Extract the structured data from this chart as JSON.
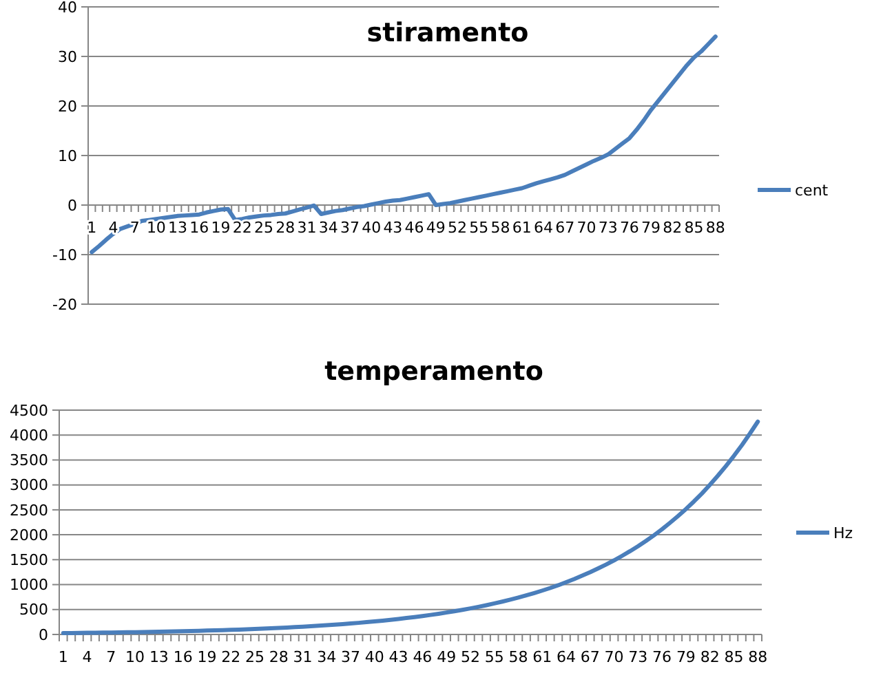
{
  "chart_data": [
    {
      "type": "line",
      "title": "stiramento",
      "categories": [
        "1",
        null,
        null,
        "4",
        null,
        null,
        "7",
        null,
        null,
        "10",
        null,
        null,
        "13",
        null,
        null,
        "16",
        null,
        null,
        "19",
        null,
        null,
        "22",
        null,
        null,
        "25",
        null,
        null,
        "28",
        null,
        null,
        "31",
        null,
        null,
        "34",
        null,
        null,
        "37",
        null,
        null,
        "40",
        null,
        null,
        "43",
        null,
        null,
        "46",
        null,
        null,
        "49",
        null,
        null,
        "52",
        null,
        null,
        "55",
        null,
        null,
        "58",
        null,
        null,
        "61",
        null,
        null,
        "64",
        null,
        null,
        "67",
        null,
        null,
        "70",
        null,
        null,
        "73",
        null,
        null,
        "76",
        null,
        null,
        "79",
        null,
        null,
        "82",
        null,
        null,
        "85",
        null,
        null,
        "88"
      ],
      "series": [
        {
          "name": "cent",
          "color": "#4a7ebb",
          "values": [
            -9.5,
            -8.3,
            -7,
            -5.8,
            -4.8,
            -4.3,
            -3.8,
            -3.2,
            -3,
            -2.8,
            -2.6,
            -2.4,
            -2.2,
            -2.1,
            -2,
            -1.9,
            -1.5,
            -1.2,
            -0.9,
            -0.8,
            -3,
            -2.8,
            -2.5,
            -2.3,
            -2.1,
            -2,
            -1.8,
            -1.7,
            -1.3,
            -0.9,
            -0.5,
            -0.1,
            -1.8,
            -1.5,
            -1.2,
            -1,
            -0.7,
            -0.4,
            -0.2,
            0.1,
            0.4,
            0.7,
            0.9,
            1,
            1.3,
            1.6,
            1.9,
            2.2,
            0,
            0.2,
            0.4,
            0.7,
            1,
            1.3,
            1.6,
            1.9,
            2.2,
            2.5,
            2.8,
            3.1,
            3.4,
            3.9,
            4.4,
            4.8,
            5.2,
            5.6,
            6.1,
            6.8,
            7.5,
            8.2,
            8.9,
            9.5,
            10.2,
            11.3,
            12.4,
            13.5,
            15.2,
            17.1,
            19.2,
            21,
            22.8,
            24.6,
            26.4,
            28.2,
            29.8,
            31,
            32.5,
            34
          ]
        }
      ],
      "ylim": [
        -20,
        40
      ],
      "yticks": [
        -20,
        -10,
        0,
        10,
        20,
        30,
        40
      ],
      "grid": "y",
      "legend": "right"
    },
    {
      "type": "line",
      "title": "temperamento",
      "categories": [
        "1",
        null,
        null,
        "4",
        null,
        null,
        "7",
        null,
        null,
        "10",
        null,
        null,
        "13",
        null,
        null,
        "16",
        null,
        null,
        "19",
        null,
        null,
        "22",
        null,
        null,
        "25",
        null,
        null,
        "28",
        null,
        null,
        "31",
        null,
        null,
        "34",
        null,
        null,
        "37",
        null,
        null,
        "40",
        null,
        null,
        "43",
        null,
        null,
        "46",
        null,
        null,
        "49",
        null,
        null,
        "52",
        null,
        null,
        "55",
        null,
        null,
        "58",
        null,
        null,
        "61",
        null,
        null,
        "64",
        null,
        null,
        "67",
        null,
        null,
        "70",
        null,
        null,
        "73",
        null,
        null,
        "76",
        null,
        null,
        "79",
        null,
        null,
        "82",
        null,
        null,
        "85",
        null,
        null,
        "88"
      ],
      "series": [
        {
          "name": "Hz",
          "color": "#4a7ebb",
          "values": [
            27,
            29,
            31,
            33,
            35,
            37,
            39,
            41,
            44,
            46,
            49,
            52,
            55,
            58,
            62,
            65,
            69,
            73,
            78,
            82,
            87,
            92,
            98,
            104,
            110,
            116,
            123,
            131,
            139,
            147,
            156,
            165,
            175,
            185,
            196,
            208,
            220,
            233,
            247,
            262,
            277,
            294,
            311,
            330,
            349,
            370,
            392,
            415,
            440,
            466,
            494,
            523,
            554,
            587,
            622,
            659,
            699,
            740,
            784,
            831,
            880,
            932,
            988,
            1050,
            1112,
            1179,
            1249,
            1325,
            1403,
            1487,
            1577,
            1671,
            1770,
            1877,
            1990,
            2110,
            2240,
            2375,
            2517,
            2668,
            2828,
            3002,
            3185,
            3377,
            3581,
            3797,
            4027,
            4269
          ]
        }
      ],
      "ylim": [
        0,
        4500
      ],
      "yticks": [
        0,
        500,
        1000,
        1500,
        2000,
        2500,
        3000,
        3500,
        4000,
        4500
      ],
      "grid": "y",
      "legend": "right"
    }
  ]
}
